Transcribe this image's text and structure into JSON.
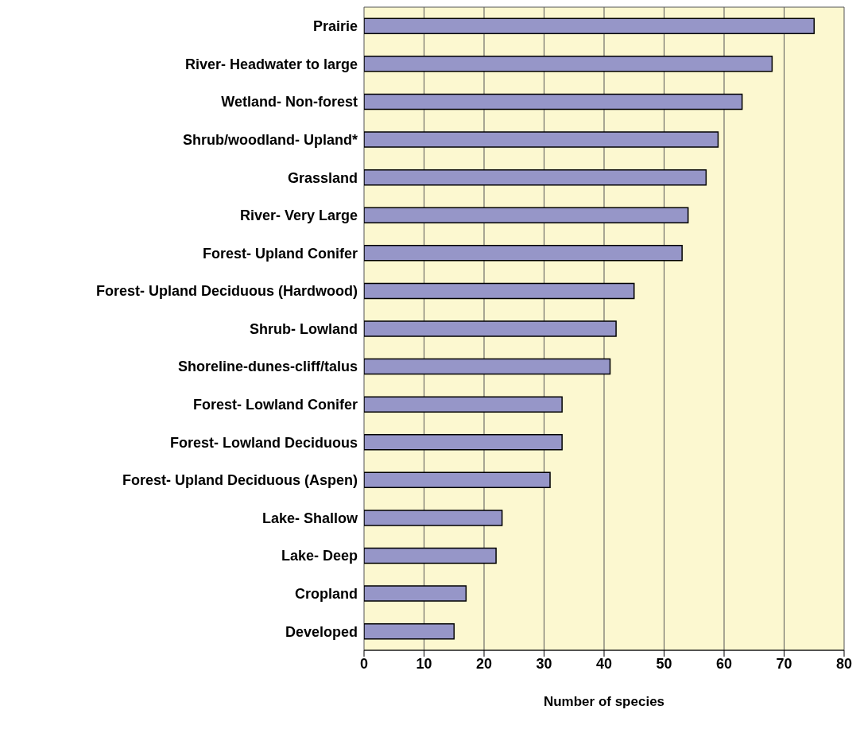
{
  "chart_data": {
    "type": "bar",
    "orientation": "horizontal",
    "xlabel": "Number of species",
    "categories": [
      "Prairie",
      "River- Headwater to large",
      "Wetland- Non-forest",
      "Shrub/woodland- Upland*",
      "Grassland",
      "River- Very Large",
      "Forest- Upland Conifer",
      "Forest- Upland Deciduous (Hardwood)",
      "Shrub- Lowland",
      "Shoreline-dunes-cliff/talus",
      "Forest- Lowland Conifer",
      "Forest- Lowland Deciduous",
      "Forest- Upland Deciduous (Aspen)",
      "Lake- Shallow",
      "Lake- Deep",
      "Cropland",
      "Developed"
    ],
    "values": [
      75,
      68,
      63,
      59,
      57,
      54,
      53,
      45,
      42,
      41,
      33,
      33,
      31,
      23,
      22,
      17,
      15
    ],
    "color": "#9696c8",
    "xlim": [
      0,
      80
    ],
    "xticks": [
      0,
      10,
      20,
      30,
      40,
      50,
      60,
      70,
      80
    ],
    "grid": "x",
    "legend": false
  }
}
